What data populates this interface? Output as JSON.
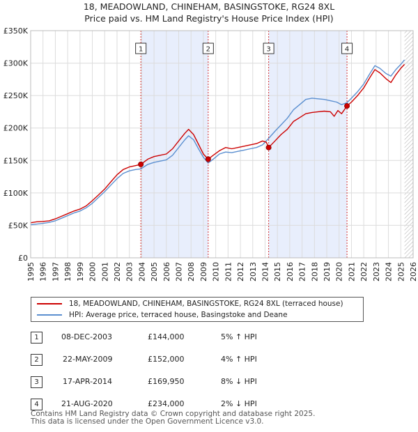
{
  "chart_data": {
    "type": "line",
    "title": "18, MEADOWLAND, CHINEHAM, BASINGSTOKE, RG24 8XL",
    "subtitle": "Price paid vs. HM Land Registry's House Price Index (HPI)",
    "xlim": [
      1995,
      2026
    ],
    "ylim": [
      0,
      350000
    ],
    "y_ticks": [
      0,
      50000,
      100000,
      150000,
      200000,
      250000,
      300000,
      350000
    ],
    "y_tick_labels": [
      "£0",
      "£50K",
      "£100K",
      "£150K",
      "£200K",
      "£250K",
      "£300K",
      "£350K"
    ],
    "x_ticks": [
      "1995",
      "1996",
      "1997",
      "1998",
      "1999",
      "2000",
      "2001",
      "2002",
      "2003",
      "2004",
      "2005",
      "2006",
      "2007",
      "2008",
      "2009",
      "2010",
      "2011",
      "2012",
      "2013",
      "2014",
      "2015",
      "2016",
      "2017",
      "2018",
      "2019",
      "2020",
      "2021",
      "2022",
      "2023",
      "2024",
      "2025",
      "2026"
    ],
    "grid": true,
    "shaded_ranges": [
      [
        2003.93,
        2009.39
      ],
      [
        2014.29,
        2020.64
      ]
    ],
    "series": [
      {
        "name": "18, MEADOWLAND, CHINEHAM, BASINGSTOKE, RG24 8XL (terraced house)",
        "color": "#cc0000",
        "points": [
          [
            1995.0,
            54000
          ],
          [
            1995.5,
            55500
          ],
          [
            1996.0,
            56000
          ],
          [
            1996.5,
            57000
          ],
          [
            1997.0,
            60000
          ],
          [
            1997.5,
            64000
          ],
          [
            1998.0,
            68000
          ],
          [
            1998.5,
            72000
          ],
          [
            1999.0,
            75000
          ],
          [
            1999.5,
            80000
          ],
          [
            2000.0,
            88000
          ],
          [
            2000.5,
            97000
          ],
          [
            2001.0,
            106000
          ],
          [
            2001.5,
            117000
          ],
          [
            2002.0,
            128000
          ],
          [
            2002.5,
            136000
          ],
          [
            2003.0,
            140000
          ],
          [
            2003.5,
            142000
          ],
          [
            2003.93,
            144000
          ],
          [
            2004.5,
            152000
          ],
          [
            2005.0,
            156000
          ],
          [
            2005.5,
            158000
          ],
          [
            2006.0,
            160000
          ],
          [
            2006.5,
            168000
          ],
          [
            2007.0,
            180000
          ],
          [
            2007.5,
            192000
          ],
          [
            2007.8,
            198000
          ],
          [
            2008.2,
            190000
          ],
          [
            2008.6,
            175000
          ],
          [
            2009.0,
            160000
          ],
          [
            2009.39,
            152000
          ],
          [
            2009.8,
            158000
          ],
          [
            2010.3,
            165000
          ],
          [
            2010.8,
            170000
          ],
          [
            2011.3,
            168000
          ],
          [
            2011.8,
            170000
          ],
          [
            2012.3,
            172000
          ],
          [
            2012.8,
            174000
          ],
          [
            2013.3,
            176000
          ],
          [
            2013.8,
            180000
          ],
          [
            2014.1,
            178000
          ],
          [
            2014.29,
            169950
          ],
          [
            2014.8,
            180000
          ],
          [
            2015.3,
            190000
          ],
          [
            2015.8,
            198000
          ],
          [
            2016.3,
            210000
          ],
          [
            2016.8,
            216000
          ],
          [
            2017.3,
            222000
          ],
          [
            2017.8,
            224000
          ],
          [
            2018.3,
            225000
          ],
          [
            2018.8,
            226000
          ],
          [
            2019.3,
            225000
          ],
          [
            2019.6,
            218000
          ],
          [
            2019.9,
            227000
          ],
          [
            2020.2,
            222000
          ],
          [
            2020.64,
            234000
          ],
          [
            2021.0,
            240000
          ],
          [
            2021.5,
            250000
          ],
          [
            2022.0,
            262000
          ],
          [
            2022.5,
            278000
          ],
          [
            2022.9,
            290000
          ],
          [
            2023.3,
            285000
          ],
          [
            2023.8,
            276000
          ],
          [
            2024.2,
            270000
          ],
          [
            2024.6,
            282000
          ],
          [
            2025.0,
            292000
          ],
          [
            2025.3,
            298000
          ]
        ]
      },
      {
        "name": "HPI: Average price, terraced house, Basingstoke and Deane",
        "color": "#5b8fd0",
        "points": [
          [
            1995.0,
            51000
          ],
          [
            1995.5,
            52000
          ],
          [
            1996.0,
            53000
          ],
          [
            1996.5,
            54500
          ],
          [
            1997.0,
            57000
          ],
          [
            1997.5,
            61000
          ],
          [
            1998.0,
            65000
          ],
          [
            1998.5,
            69000
          ],
          [
            1999.0,
            72000
          ],
          [
            1999.5,
            77000
          ],
          [
            2000.0,
            84000
          ],
          [
            2000.5,
            93000
          ],
          [
            2001.0,
            102000
          ],
          [
            2001.5,
            112000
          ],
          [
            2002.0,
            122000
          ],
          [
            2002.5,
            130000
          ],
          [
            2003.0,
            134000
          ],
          [
            2003.5,
            136000
          ],
          [
            2003.93,
            137000
          ],
          [
            2004.5,
            144000
          ],
          [
            2005.0,
            147000
          ],
          [
            2005.5,
            149000
          ],
          [
            2006.0,
            151000
          ],
          [
            2006.5,
            158000
          ],
          [
            2007.0,
            170000
          ],
          [
            2007.5,
            182000
          ],
          [
            2007.8,
            188000
          ],
          [
            2008.2,
            182000
          ],
          [
            2008.6,
            168000
          ],
          [
            2009.0,
            155000
          ],
          [
            2009.39,
            146000
          ],
          [
            2009.8,
            152000
          ],
          [
            2010.3,
            160000
          ],
          [
            2010.8,
            163000
          ],
          [
            2011.3,
            162000
          ],
          [
            2011.8,
            164000
          ],
          [
            2012.3,
            166000
          ],
          [
            2012.8,
            168000
          ],
          [
            2013.3,
            170000
          ],
          [
            2013.8,
            174000
          ],
          [
            2014.29,
            184000
          ],
          [
            2014.8,
            195000
          ],
          [
            2015.3,
            205000
          ],
          [
            2015.8,
            215000
          ],
          [
            2016.3,
            228000
          ],
          [
            2016.8,
            236000
          ],
          [
            2017.3,
            244000
          ],
          [
            2017.8,
            246000
          ],
          [
            2018.3,
            245000
          ],
          [
            2018.8,
            244000
          ],
          [
            2019.3,
            242000
          ],
          [
            2019.8,
            240000
          ],
          [
            2020.2,
            236000
          ],
          [
            2020.64,
            239000
          ],
          [
            2021.0,
            246000
          ],
          [
            2021.5,
            256000
          ],
          [
            2022.0,
            268000
          ],
          [
            2022.5,
            284000
          ],
          [
            2022.9,
            296000
          ],
          [
            2023.3,
            292000
          ],
          [
            2023.8,
            284000
          ],
          [
            2024.2,
            280000
          ],
          [
            2024.6,
            290000
          ],
          [
            2025.0,
            298000
          ],
          [
            2025.3,
            305000
          ]
        ]
      }
    ],
    "transactions": [
      {
        "label": "1",
        "x": 2003.93,
        "price": 144000
      },
      {
        "label": "2",
        "x": 2009.39,
        "price": 152000
      },
      {
        "label": "3",
        "x": 2014.29,
        "price": 169950
      },
      {
        "label": "4",
        "x": 2020.64,
        "price": 234000
      }
    ],
    "hatch_from": 2025.3
  },
  "legend": {
    "property_label": "18, MEADOWLAND, CHINEHAM, BASINGSTOKE, RG24 8XL (terraced house)",
    "hpi_label": "HPI: Average price, terraced house, Basingstoke and Deane"
  },
  "table": [
    {
      "num": "1",
      "date": "08-DEC-2003",
      "price": "£144,000",
      "hpi": "5% ↑ HPI"
    },
    {
      "num": "2",
      "date": "22-MAY-2009",
      "price": "£152,000",
      "hpi": "4% ↑ HPI"
    },
    {
      "num": "3",
      "date": "17-APR-2014",
      "price": "£169,950",
      "hpi": "8% ↓ HPI"
    },
    {
      "num": "4",
      "date": "21-AUG-2020",
      "price": "£234,000",
      "hpi": "2% ↓ HPI"
    }
  ],
  "footer": {
    "line1": "Contains HM Land Registry data © Crown copyright and database right 2025.",
    "line2": "This data is licensed under the Open Government Licence v3.0."
  },
  "colors": {
    "property": "#cc0000",
    "hpi": "#5b8fd0",
    "shade": "#e8eefc",
    "grid": "#dcdcdc"
  }
}
